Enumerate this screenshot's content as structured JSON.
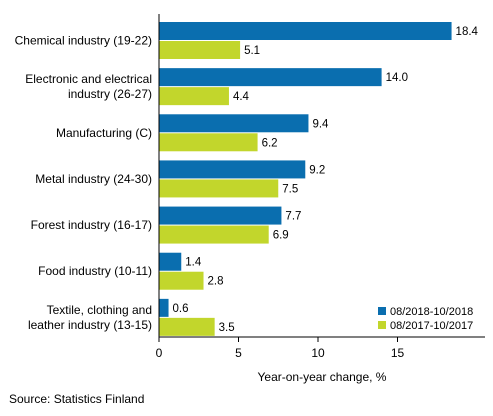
{
  "chart_data": {
    "type": "bar",
    "orientation": "horizontal",
    "categories": [
      [
        "Chemical industry (19-22)"
      ],
      [
        "Electronic and electrical",
        "industry (26-27)"
      ],
      [
        "Manufacturing (C)"
      ],
      [
        "Metal industry (24-30)"
      ],
      [
        "Forest industry (16-17)"
      ],
      [
        "Food industry (10-11)"
      ],
      [
        "Textile, clothing and",
        "leather industry (13-15)"
      ]
    ],
    "series": [
      {
        "name": "08/2018-10/2018",
        "color": "#0a6eaf",
        "values": [
          18.4,
          14.0,
          9.4,
          9.2,
          7.7,
          1.4,
          0.6
        ],
        "labels": [
          "18.4",
          "14.0",
          "9.4",
          "9.2",
          "7.7",
          "1.4",
          "0.6"
        ]
      },
      {
        "name": "08/2017-10/2017",
        "color": "#c2d62c",
        "values": [
          5.1,
          4.4,
          6.2,
          7.5,
          6.9,
          2.8,
          3.5
        ],
        "labels": [
          "5.1",
          "4.4",
          "6.2",
          "7.5",
          "6.9",
          "2.8",
          "3.5"
        ]
      }
    ],
    "xlabel": "Year-on-year change, %",
    "xlim": [
      0,
      20
    ],
    "xticks": [
      0,
      5,
      10,
      15
    ],
    "grid": false,
    "legend": "bottom-right",
    "source": "Source: Statistics Finland"
  }
}
